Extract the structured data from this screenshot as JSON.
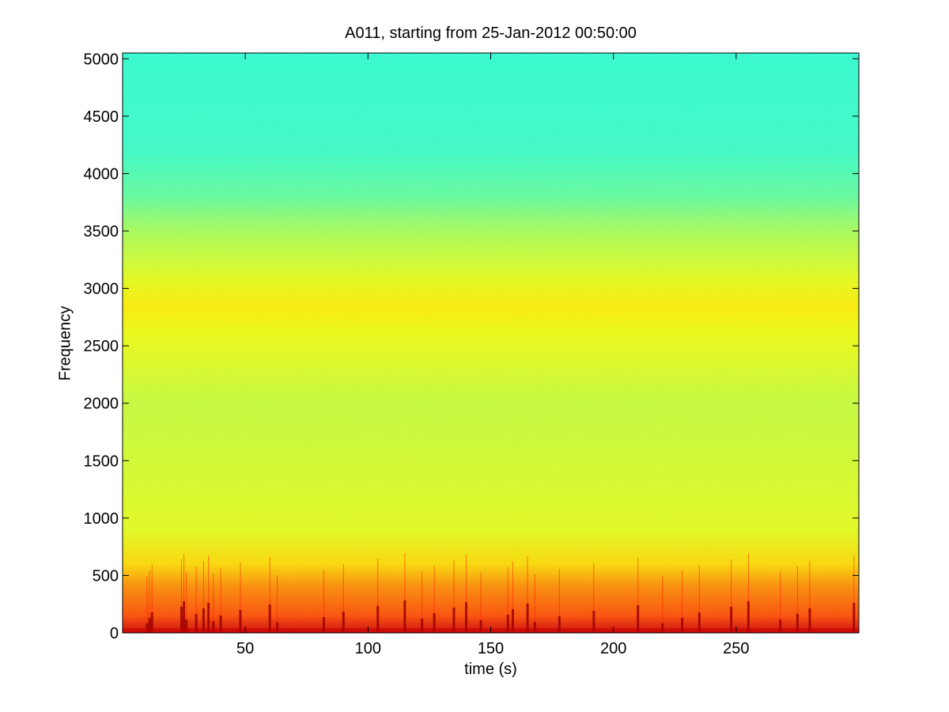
{
  "chart_data": {
    "type": "heatmap",
    "title": "A011, starting from 25-Jan-2012 00:50:00",
    "xlabel": "time (s)",
    "ylabel": "Frequency",
    "xlim": [
      0,
      300
    ],
    "ylim": [
      0,
      5050
    ],
    "xticks": [
      50,
      100,
      150,
      200,
      250
    ],
    "yticks": [
      0,
      500,
      1000,
      1500,
      2000,
      2500,
      3000,
      3500,
      4000,
      4500,
      5000
    ],
    "colormap": "jet",
    "level_profile": [
      {
        "frequency": 0,
        "level": 0.92
      },
      {
        "frequency": 150,
        "level": 0.8
      },
      {
        "frequency": 400,
        "level": 0.74
      },
      {
        "frequency": 600,
        "level": 0.66
      },
      {
        "frequency": 900,
        "level": 0.6
      },
      {
        "frequency": 2000,
        "level": 0.57
      },
      {
        "frequency": 2600,
        "level": 0.61
      },
      {
        "frequency": 2850,
        "level": 0.64
      },
      {
        "frequency": 3100,
        "level": 0.6
      },
      {
        "frequency": 3500,
        "level": 0.54
      },
      {
        "frequency": 3800,
        "level": 0.47
      },
      {
        "frequency": 4200,
        "level": 0.43
      },
      {
        "frequency": 5050,
        "level": 0.42
      }
    ],
    "low_frequency_bursts_time_s": [
      10,
      11,
      12,
      24,
      25,
      26,
      30,
      33,
      35,
      37,
      40,
      48,
      60,
      63,
      82,
      90,
      104,
      115,
      122,
      127,
      135,
      140,
      146,
      157,
      159,
      165,
      168,
      178,
      192,
      210,
      220,
      228,
      235,
      248,
      255,
      268,
      275,
      280,
      298
    ]
  }
}
